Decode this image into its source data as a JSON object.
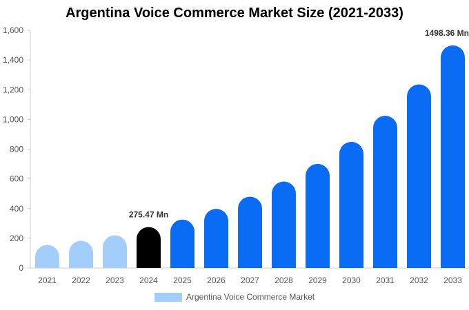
{
  "chart_data": {
    "type": "bar",
    "title": "Argentina Voice Commerce Market Size (2021-2033)",
    "categories": [
      "2021",
      "2022",
      "2023",
      "2024",
      "2025",
      "2026",
      "2027",
      "2028",
      "2029",
      "2030",
      "2031",
      "2032",
      "2033"
    ],
    "series": [
      {
        "name": "Argentina Voice Commerce Market",
        "values": [
          155,
          183,
          220,
          275.47,
          326,
          398,
          480,
          582,
          701,
          849,
          1025,
          1236,
          1498.36
        ]
      }
    ],
    "data_labels": [
      {
        "category": "2024",
        "text": "275.47 Mn"
      },
      {
        "category": "2033",
        "text": "1498.36 Mn"
      }
    ],
    "ylim": [
      0,
      1600
    ],
    "yticks": [
      0,
      200,
      400,
      600,
      800,
      1000,
      1200,
      1400,
      1600
    ],
    "ytick_labels": [
      "0",
      "200",
      "400",
      "600",
      "800",
      "1,000",
      "1,200",
      "1,400",
      "1,600"
    ],
    "xlabel": "",
    "ylabel": "",
    "grid": false,
    "legend_position": "bottom",
    "colors": {
      "historical": "#a3cdfb",
      "current": "#000000",
      "forecast": "#0a6cf5",
      "legend_swatch": "#a3cdfb",
      "axis": "#cccccc"
    },
    "bar_color_groups": [
      "historical",
      "historical",
      "historical",
      "current",
      "forecast",
      "forecast",
      "forecast",
      "forecast",
      "forecast",
      "forecast",
      "forecast",
      "forecast",
      "forecast"
    ]
  }
}
